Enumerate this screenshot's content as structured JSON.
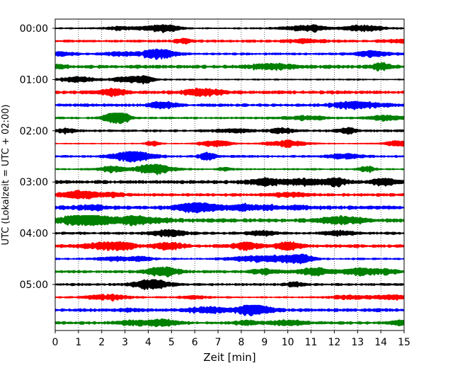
{
  "chart_data": {
    "type": "line",
    "title": "",
    "xlabel": "Zeit  [min]",
    "ylabel": "UTC (Lokalzeit = UTC + 02:00)",
    "xlim": [
      0,
      15
    ],
    "x_ticks": [
      "0",
      "1",
      "2",
      "3",
      "4",
      "5",
      "6",
      "7",
      "8",
      "9",
      "10",
      "11",
      "12",
      "13",
      "14",
      "15"
    ],
    "y_ticks": [
      "00:00",
      "01:00",
      "02:00",
      "03:00",
      "04:00",
      "05:00"
    ],
    "grid": "vertical dotted",
    "trace_colors": [
      "#000000",
      "#ff0000",
      "#0000ff",
      "#008000"
    ],
    "row_interval_min": 15,
    "series": [
      {
        "start": "00:00"
      },
      {
        "start": "00:15"
      },
      {
        "start": "00:30"
      },
      {
        "start": "00:45"
      },
      {
        "start": "01:00"
      },
      {
        "start": "01:15"
      },
      {
        "start": "01:30"
      },
      {
        "start": "01:45"
      },
      {
        "start": "02:00"
      },
      {
        "start": "02:15"
      },
      {
        "start": "02:30"
      },
      {
        "start": "02:45"
      },
      {
        "start": "03:00"
      },
      {
        "start": "03:15"
      },
      {
        "start": "03:30"
      },
      {
        "start": "03:45"
      },
      {
        "start": "04:00"
      },
      {
        "start": "04:15"
      },
      {
        "start": "04:30"
      },
      {
        "start": "04:45"
      },
      {
        "start": "05:00"
      },
      {
        "start": "05:15"
      },
      {
        "start": "05:30"
      },
      {
        "start": "05:45"
      }
    ]
  }
}
